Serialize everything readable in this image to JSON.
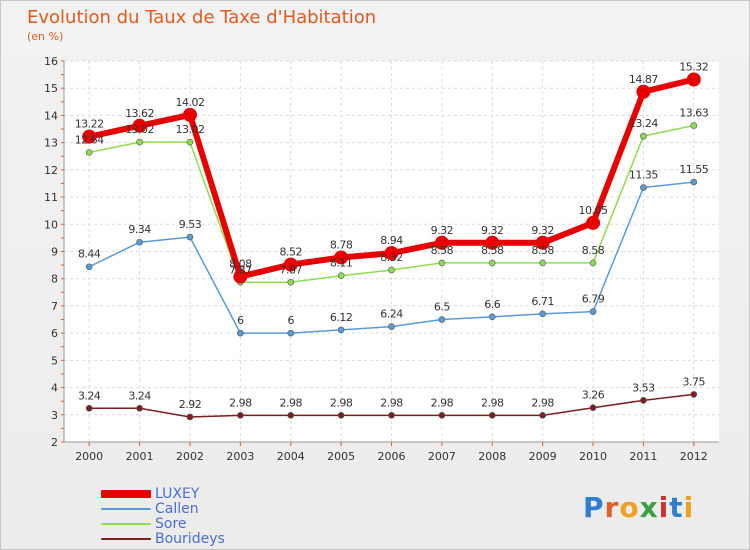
{
  "chart_data": {
    "type": "line",
    "title": "Evolution du Taux de Taxe d'Habitation",
    "subtitle": "(en %)",
    "categories": [
      "2000",
      "2001",
      "2002",
      "2003",
      "2004",
      "2005",
      "2006",
      "2007",
      "2008",
      "2009",
      "2010",
      "2011",
      "2012"
    ],
    "ylim": [
      2,
      16
    ],
    "yticks": [
      2,
      3,
      4,
      5,
      6,
      7,
      8,
      9,
      10,
      11,
      12,
      13,
      14,
      15,
      16
    ],
    "grid": true,
    "legend_position": "bottom-left",
    "series": [
      {
        "name": "LUXEY",
        "color": "#e60000",
        "values": [
          13.22,
          13.62,
          14.02,
          8.08,
          8.52,
          8.78,
          8.94,
          9.32,
          9.32,
          9.32,
          10.05,
          14.87,
          15.32
        ],
        "labels": [
          "13.22",
          "13.62",
          "14.02",
          "8.08",
          "8.52",
          "8.78",
          "8.94",
          "9.32",
          "9.32",
          "9.32",
          "10.05",
          "14.87",
          "15.32"
        ]
      },
      {
        "name": "Callen",
        "color": "#5b9bd5",
        "values": [
          8.44,
          9.34,
          9.53,
          6,
          6,
          6.12,
          6.24,
          6.5,
          6.6,
          6.71,
          6.79,
          11.35,
          11.55
        ],
        "labels": [
          "8.44",
          "9.34",
          "9.53",
          "6",
          "6",
          "6.12",
          "6.24",
          "6.5",
          "6.6",
          "6.71",
          "6.79",
          "11.35",
          "11.55"
        ]
      },
      {
        "name": "Sore",
        "color": "#8fdc50",
        "values": [
          12.64,
          13.02,
          13.02,
          7.87,
          7.87,
          8.11,
          8.32,
          8.58,
          8.58,
          8.58,
          8.58,
          13.24,
          13.63
        ],
        "labels": [
          "12.64",
          "13.02",
          "13.02",
          "7.87",
          "7.87",
          "8.11",
          "8.32",
          "8.58",
          "8.58",
          "8.58",
          "8.58",
          "13.24",
          "13.63"
        ]
      },
      {
        "name": "Bourideys",
        "color": "#7a2020",
        "values": [
          3.24,
          3.24,
          2.92,
          2.98,
          2.98,
          2.98,
          2.98,
          2.98,
          2.98,
          2.98,
          3.26,
          3.53,
          3.75
        ],
        "labels": [
          "3.24",
          "3.24",
          "2.92",
          "2.98",
          "2.98",
          "2.98",
          "2.98",
          "2.98",
          "2.98",
          "2.98",
          "3.26",
          "3.53",
          "3.75"
        ]
      }
    ]
  },
  "logo": {
    "text": "Proxiti"
  }
}
